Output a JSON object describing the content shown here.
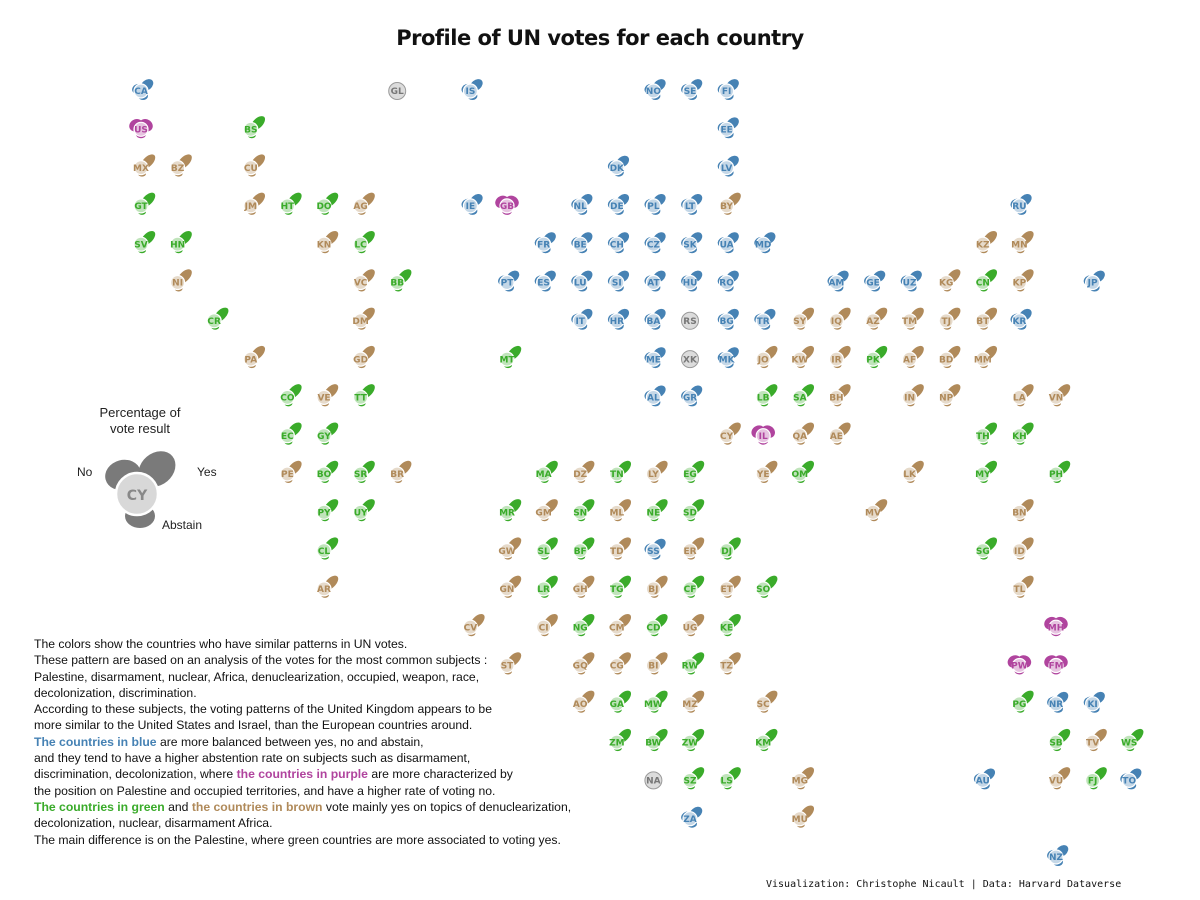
{
  "title": "Profile of UN votes for each country",
  "legend": {
    "title_line1": "Percentage of",
    "title_line2": "vote result",
    "no": "No",
    "yes": "Yes",
    "abstain": "Abstain",
    "example_code": "CY"
  },
  "colors": {
    "blue": "#4682b4",
    "purple": "#b0449e",
    "green": "#3aab2a",
    "brown": "#b08a5a",
    "grey": "#a0a0a0"
  },
  "description": {
    "l1": "The colors show the countries who have similar patterns in UN votes.",
    "l2": "These pattern are based on an analysis of the votes for the most common subjects :",
    "l3": "Palestine, disarmament, nuclear, Africa, denuclearization, occupied, weapon, race,",
    "l4": "decolonization, discrimination.",
    "l5": "According to these subjects, the voting patterns of the United Kingdom appears to be",
    "l6": "more similar to the United States and Israel, than the European countries around.",
    "l7_hl": "The countries in blue",
    "l7_rest": " are more balanced between yes, no and abstain,",
    "l8": "and they tend to have a higher abstention rate on subjects such as disarmament,",
    "l9_pre": "discrimination, decolonization, where ",
    "l9_hl": "the countries in purple",
    "l9_post": " are more characterized by",
    "l10": "the position on Palestine and occupied territories, and have a higher rate of voting no.",
    "l11_hl1": "The countries in green",
    "l11_mid": " and ",
    "l11_hl2": "the countries in brown",
    "l11_post": " vote mainly yes on topics of denuclearization,",
    "l12": "decolonization, nuclear, disarmament Africa.",
    "l13": "The main difference is on the Palestine, where green countries are more associated to voting yes."
  },
  "credit": "Visualization: Christophe Nicault | Data: Harvard Dataverse",
  "chart_data": {
    "type": "tile-map-glyphs",
    "title": "Profile of UN votes for each country",
    "legend": [
      "No",
      "Yes",
      "Abstain"
    ],
    "cluster_colors": {
      "B": "blue",
      "P": "purple",
      "G": "green",
      "R": "brown",
      "N": "grey"
    },
    "countries": [
      [
        "CA",
        "B",
        0,
        0
      ],
      [
        "GL",
        "N",
        7,
        0
      ],
      [
        "IS",
        "B",
        9,
        0
      ],
      [
        "NO",
        "B",
        14,
        0
      ],
      [
        "SE",
        "B",
        15,
        0
      ],
      [
        "FI",
        "B",
        16,
        0
      ],
      [
        "US",
        "P",
        0,
        1
      ],
      [
        "BS",
        "G",
        3,
        1
      ],
      [
        "EE",
        "B",
        16,
        1
      ],
      [
        "MX",
        "R",
        0,
        2
      ],
      [
        "BZ",
        "R",
        1,
        2
      ],
      [
        "CU",
        "R",
        3,
        2
      ],
      [
        "DK",
        "B",
        13,
        2
      ],
      [
        "LV",
        "B",
        16,
        2
      ],
      [
        "GT",
        "G",
        0,
        3
      ],
      [
        "JM",
        "R",
        3,
        3
      ],
      [
        "HT",
        "G",
        4,
        3
      ],
      [
        "DO",
        "G",
        5,
        3
      ],
      [
        "AG",
        "R",
        6,
        3
      ],
      [
        "IE",
        "B",
        9,
        3
      ],
      [
        "GB",
        "P",
        10,
        3
      ],
      [
        "NL",
        "B",
        12,
        3
      ],
      [
        "DE",
        "B",
        13,
        3
      ],
      [
        "PL",
        "B",
        14,
        3
      ],
      [
        "LT",
        "B",
        15,
        3
      ],
      [
        "BY",
        "R",
        16,
        3
      ],
      [
        "RU",
        "B",
        24,
        3
      ],
      [
        "SV",
        "G",
        0,
        4
      ],
      [
        "HN",
        "G",
        1,
        4
      ],
      [
        "KN",
        "R",
        5,
        4
      ],
      [
        "LC",
        "G",
        6,
        4
      ],
      [
        "FR",
        "B",
        11,
        4
      ],
      [
        "BE",
        "B",
        12,
        4
      ],
      [
        "CH",
        "B",
        13,
        4
      ],
      [
        "CZ",
        "B",
        14,
        4
      ],
      [
        "SK",
        "B",
        15,
        4
      ],
      [
        "UA",
        "B",
        16,
        4
      ],
      [
        "MD",
        "B",
        17,
        4
      ],
      [
        "KZ",
        "R",
        23,
        4
      ],
      [
        "MN",
        "R",
        24,
        4
      ],
      [
        "NI",
        "R",
        1,
        5
      ],
      [
        "VC",
        "R",
        6,
        5
      ],
      [
        "BB",
        "G",
        7,
        5
      ],
      [
        "PT",
        "B",
        10,
        5
      ],
      [
        "ES",
        "B",
        11,
        5
      ],
      [
        "LU",
        "B",
        12,
        5
      ],
      [
        "SI",
        "B",
        13,
        5
      ],
      [
        "AT",
        "B",
        14,
        5
      ],
      [
        "HU",
        "B",
        15,
        5
      ],
      [
        "RO",
        "B",
        16,
        5
      ],
      [
        "AM",
        "B",
        19,
        5
      ],
      [
        "GE",
        "B",
        20,
        5
      ],
      [
        "UZ",
        "B",
        21,
        5
      ],
      [
        "KG",
        "R",
        22,
        5
      ],
      [
        "CN",
        "G",
        23,
        5
      ],
      [
        "KP",
        "R",
        24,
        5
      ],
      [
        "JP",
        "B",
        26,
        5
      ],
      [
        "CR",
        "G",
        2,
        6
      ],
      [
        "DM",
        "R",
        6,
        6
      ],
      [
        "IT",
        "B",
        12,
        6
      ],
      [
        "HR",
        "B",
        13,
        6
      ],
      [
        "BA",
        "B",
        14,
        6
      ],
      [
        "RS",
        "N",
        15,
        6
      ],
      [
        "BG",
        "B",
        16,
        6
      ],
      [
        "TR",
        "B",
        17,
        6
      ],
      [
        "SY",
        "R",
        18,
        6
      ],
      [
        "IQ",
        "R",
        19,
        6
      ],
      [
        "AZ",
        "R",
        20,
        6
      ],
      [
        "TM",
        "R",
        21,
        6
      ],
      [
        "TJ",
        "R",
        22,
        6
      ],
      [
        "BT",
        "R",
        23,
        6
      ],
      [
        "KR",
        "B",
        24,
        6
      ],
      [
        "PA",
        "R",
        3,
        7
      ],
      [
        "GD",
        "R",
        6,
        7
      ],
      [
        "MT",
        "G",
        10,
        7
      ],
      [
        "ME",
        "B",
        14,
        7
      ],
      [
        "XK",
        "N",
        15,
        7
      ],
      [
        "MK",
        "B",
        16,
        7
      ],
      [
        "JO",
        "R",
        17,
        7
      ],
      [
        "KW",
        "R",
        18,
        7
      ],
      [
        "IR",
        "R",
        19,
        7
      ],
      [
        "PK",
        "G",
        20,
        7
      ],
      [
        "AF",
        "R",
        21,
        7
      ],
      [
        "BD",
        "R",
        22,
        7
      ],
      [
        "MM",
        "R",
        23,
        7
      ],
      [
        "CO",
        "G",
        4,
        8
      ],
      [
        "VE",
        "R",
        5,
        8
      ],
      [
        "TT",
        "G",
        6,
        8
      ],
      [
        "AL",
        "B",
        14,
        8
      ],
      [
        "GR",
        "B",
        15,
        8
      ],
      [
        "LB",
        "G",
        17,
        8
      ],
      [
        "SA",
        "G",
        18,
        8
      ],
      [
        "BH",
        "R",
        19,
        8
      ],
      [
        "IN",
        "R",
        21,
        8
      ],
      [
        "NP",
        "R",
        22,
        8
      ],
      [
        "LA",
        "R",
        24,
        8
      ],
      [
        "VN",
        "R",
        25,
        8
      ],
      [
        "EC",
        "G",
        4,
        9
      ],
      [
        "GY",
        "G",
        5,
        9
      ],
      [
        "CY",
        "R",
        16,
        9
      ],
      [
        "IL",
        "P",
        17,
        9
      ],
      [
        "QA",
        "R",
        18,
        9
      ],
      [
        "AE",
        "R",
        19,
        9
      ],
      [
        "TH",
        "G",
        23,
        9
      ],
      [
        "KH",
        "G",
        24,
        9
      ],
      [
        "PE",
        "R",
        4,
        10
      ],
      [
        "BO",
        "G",
        5,
        10
      ],
      [
        "SR",
        "G",
        6,
        10
      ],
      [
        "BR",
        "R",
        7,
        10
      ],
      [
        "MA",
        "G",
        11,
        10
      ],
      [
        "DZ",
        "R",
        12,
        10
      ],
      [
        "TN",
        "G",
        13,
        10
      ],
      [
        "LY",
        "R",
        14,
        10
      ],
      [
        "EG",
        "G",
        15,
        10
      ],
      [
        "YE",
        "R",
        17,
        10
      ],
      [
        "OM",
        "G",
        18,
        10
      ],
      [
        "LK",
        "R",
        21,
        10
      ],
      [
        "MY",
        "G",
        23,
        10
      ],
      [
        "PH",
        "G",
        25,
        10
      ],
      [
        "PY",
        "G",
        5,
        11
      ],
      [
        "UY",
        "G",
        6,
        11
      ],
      [
        "MR",
        "G",
        10,
        11
      ],
      [
        "GM",
        "R",
        11,
        11
      ],
      [
        "SN",
        "G",
        12,
        11
      ],
      [
        "ML",
        "R",
        13,
        11
      ],
      [
        "NE",
        "G",
        14,
        11
      ],
      [
        "SD",
        "G",
        15,
        11
      ],
      [
        "MV",
        "R",
        20,
        11
      ],
      [
        "BN",
        "R",
        24,
        11
      ],
      [
        "CL",
        "G",
        5,
        12
      ],
      [
        "GW",
        "R",
        10,
        12
      ],
      [
        "SL",
        "G",
        11,
        12
      ],
      [
        "BF",
        "G",
        12,
        12
      ],
      [
        "TD",
        "R",
        13,
        12
      ],
      [
        "SS",
        "B",
        14,
        12
      ],
      [
        "ER",
        "R",
        15,
        12
      ],
      [
        "DJ",
        "G",
        16,
        12
      ],
      [
        "SG",
        "G",
        23,
        12
      ],
      [
        "ID",
        "R",
        24,
        12
      ],
      [
        "AR",
        "R",
        5,
        13
      ],
      [
        "GN",
        "R",
        10,
        13
      ],
      [
        "LR",
        "G",
        11,
        13
      ],
      [
        "GH",
        "R",
        12,
        13
      ],
      [
        "TG",
        "G",
        13,
        13
      ],
      [
        "BJ",
        "R",
        14,
        13
      ],
      [
        "CF",
        "G",
        15,
        13
      ],
      [
        "ET",
        "R",
        16,
        13
      ],
      [
        "SO",
        "G",
        17,
        13
      ],
      [
        "TL",
        "R",
        24,
        13
      ],
      [
        "CV",
        "R",
        9,
        14
      ],
      [
        "CI",
        "R",
        11,
        14
      ],
      [
        "NG",
        "G",
        12,
        14
      ],
      [
        "CM",
        "R",
        13,
        14
      ],
      [
        "CD",
        "G",
        14,
        14
      ],
      [
        "UG",
        "R",
        15,
        14
      ],
      [
        "KE",
        "G",
        16,
        14
      ],
      [
        "MH",
        "P",
        25,
        14
      ],
      [
        "ST",
        "R",
        10,
        15
      ],
      [
        "GQ",
        "R",
        12,
        15
      ],
      [
        "CG",
        "R",
        13,
        15
      ],
      [
        "BI",
        "R",
        14,
        15
      ],
      [
        "RW",
        "G",
        15,
        15
      ],
      [
        "TZ",
        "R",
        16,
        15
      ],
      [
        "PW",
        "P",
        24,
        15
      ],
      [
        "FM",
        "P",
        25,
        15
      ],
      [
        "AO",
        "R",
        12,
        16
      ],
      [
        "GA",
        "G",
        13,
        16
      ],
      [
        "MW",
        "G",
        14,
        16
      ],
      [
        "MZ",
        "R",
        15,
        16
      ],
      [
        "SC",
        "R",
        17,
        16
      ],
      [
        "PG",
        "G",
        24,
        16
      ],
      [
        "NR",
        "B",
        25,
        16
      ],
      [
        "KI",
        "B",
        26,
        16
      ],
      [
        "ZM",
        "G",
        13,
        17
      ],
      [
        "BW",
        "G",
        14,
        17
      ],
      [
        "ZW",
        "G",
        15,
        17
      ],
      [
        "KM",
        "G",
        17,
        17
      ],
      [
        "SB",
        "G",
        25,
        17
      ],
      [
        "TV",
        "R",
        26,
        17
      ],
      [
        "WS",
        "G",
        27,
        17
      ],
      [
        "NA",
        "N",
        14,
        18
      ],
      [
        "SZ",
        "G",
        15,
        18
      ],
      [
        "LS",
        "G",
        16,
        18
      ],
      [
        "MG",
        "R",
        18,
        18
      ],
      [
        "AU",
        "B",
        23,
        18
      ],
      [
        "VU",
        "R",
        25,
        18
      ],
      [
        "FJ",
        "G",
        26,
        18
      ],
      [
        "TO",
        "B",
        27,
        18
      ],
      [
        "ZA",
        "B",
        15,
        19
      ],
      [
        "MU",
        "R",
        18,
        19
      ],
      [
        "NZ",
        "B",
        25,
        20
      ]
    ]
  }
}
